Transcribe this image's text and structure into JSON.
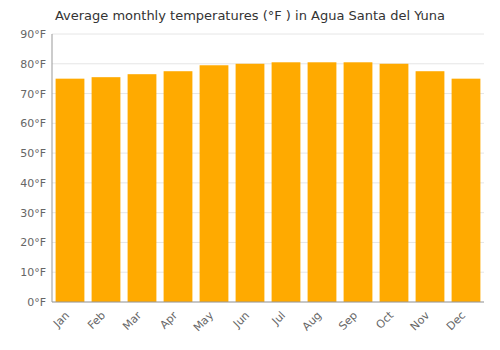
{
  "chart_data": {
    "type": "bar",
    "title": "Average monthly temperatures (°F ) in Agua Santa del Yuna",
    "categories": [
      "Jan",
      "Feb",
      "Mar",
      "Apr",
      "May",
      "Jun",
      "Jul",
      "Aug",
      "Sep",
      "Oct",
      "Nov",
      "Dec"
    ],
    "values": [
      75.0,
      75.5,
      76.5,
      77.5,
      79.5,
      80.0,
      80.5,
      80.5,
      80.5,
      80.0,
      77.5,
      75.0
    ],
    "color": "#FFAA00",
    "ylim": [
      0,
      90
    ],
    "yticks": [
      {
        "value": 0,
        "label": "0°F"
      },
      {
        "value": 10,
        "label": "10°F"
      },
      {
        "value": 20,
        "label": "20°F"
      },
      {
        "value": 30,
        "label": "30°F"
      },
      {
        "value": 40,
        "label": "40°F"
      },
      {
        "value": 50,
        "label": "50°F"
      },
      {
        "value": 60,
        "label": "60°F"
      },
      {
        "value": 70,
        "label": "70°F"
      },
      {
        "value": 80,
        "label": "80°F"
      },
      {
        "value": 90,
        "label": "90°F"
      }
    ],
    "grid": true
  }
}
